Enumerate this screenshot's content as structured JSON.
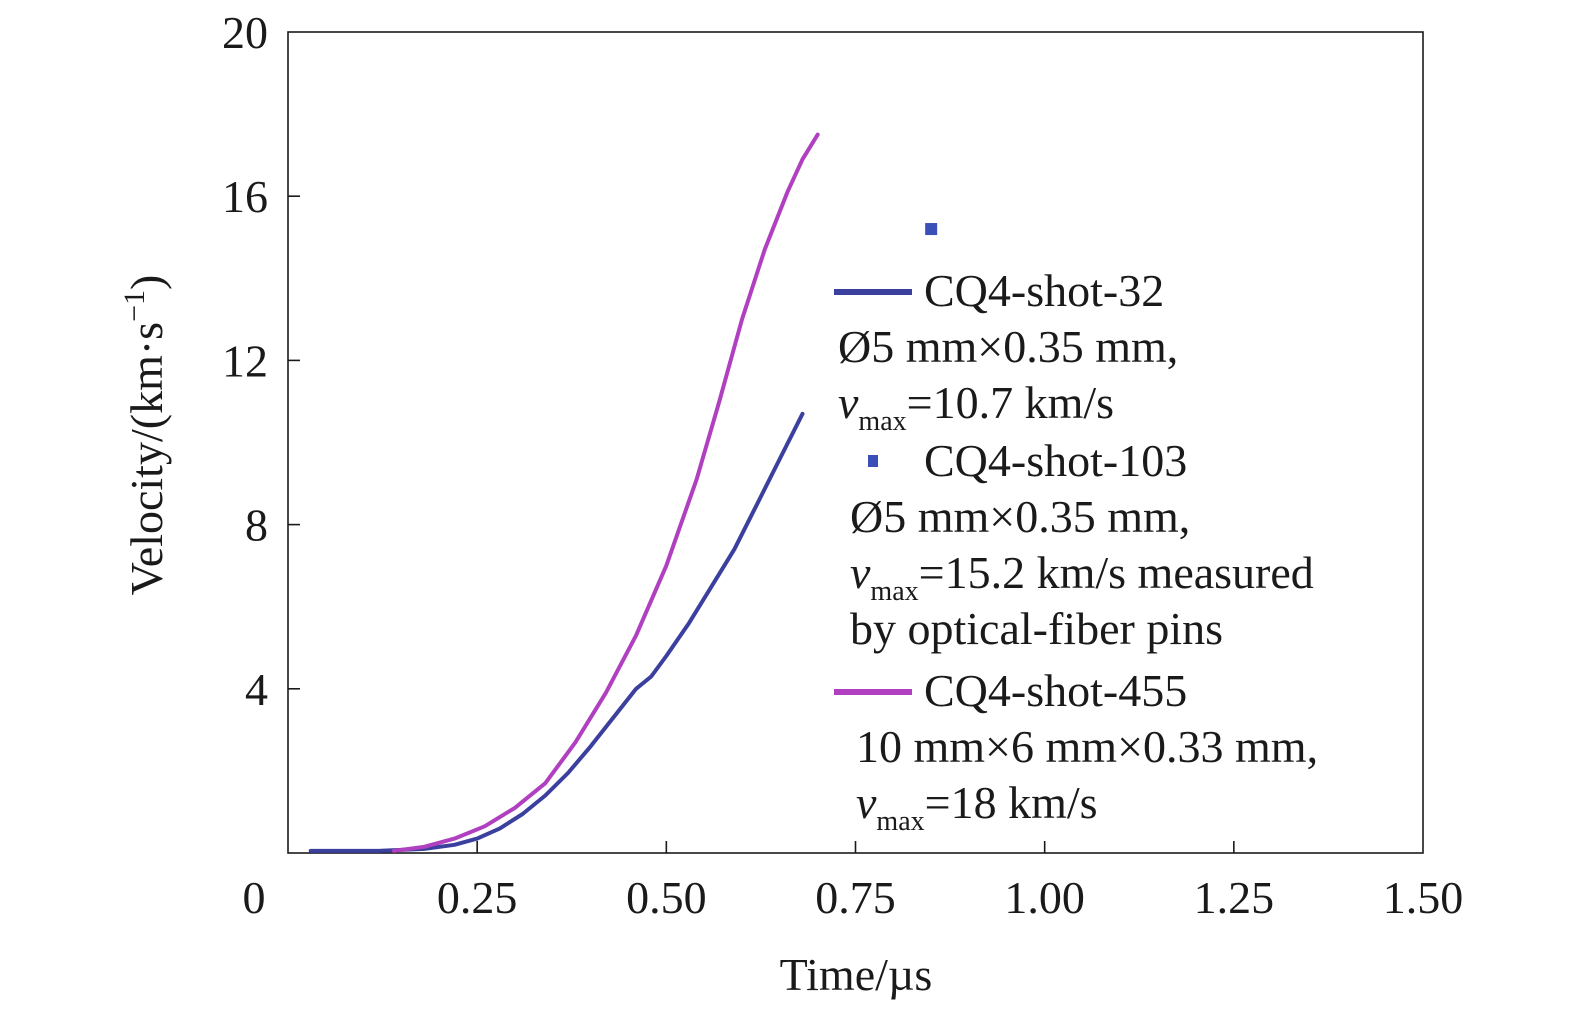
{
  "chart_data": {
    "type": "line",
    "xlabel": "Time/µs",
    "ylabel_main": "Velocity/(km·s",
    "ylabel_exp": "−1",
    "ylabel_close": ")",
    "xlim": [
      0,
      1.5
    ],
    "ylim": [
      0,
      20
    ],
    "x_ticks": [
      {
        "value": 0,
        "label": "0"
      },
      {
        "value": 0.25,
        "label": "0.25"
      },
      {
        "value": 0.5,
        "label": "0.50"
      },
      {
        "value": 0.75,
        "label": "0.75"
      },
      {
        "value": 1.0,
        "label": "1.00"
      },
      {
        "value": 1.25,
        "label": "1.25"
      },
      {
        "value": 1.5,
        "label": "1.50"
      }
    ],
    "y_ticks": [
      {
        "value": 4,
        "label": "4"
      },
      {
        "value": 8,
        "label": "8"
      },
      {
        "value": 12,
        "label": "12"
      },
      {
        "value": 16,
        "label": "16"
      },
      {
        "value": 20,
        "label": "20"
      }
    ],
    "grid": false,
    "legend_position": "right",
    "series": [
      {
        "name": "CQ4-shot-32",
        "kind": "line",
        "color": "#3b3f9e",
        "desc_lines": [
          "Ø5 mm×0.35 mm,"
        ],
        "vmax_v": "v",
        "vmax_sub": "max",
        "vmax_rest": "=10.7 km/s",
        "extra_lines": [],
        "x": [
          0.03,
          0.12,
          0.18,
          0.22,
          0.25,
          0.28,
          0.31,
          0.34,
          0.37,
          0.4,
          0.43,
          0.46,
          0.48,
          0.5,
          0.53,
          0.56,
          0.59,
          0.62,
          0.65,
          0.68
        ],
        "y": [
          0.05,
          0.05,
          0.1,
          0.2,
          0.35,
          0.6,
          0.95,
          1.4,
          1.95,
          2.6,
          3.3,
          4.0,
          4.3,
          4.8,
          5.6,
          6.5,
          7.4,
          8.5,
          9.6,
          10.7
        ]
      },
      {
        "name": "CQ4-shot-103",
        "kind": "point",
        "color": "#3b4fb8",
        "desc_lines": [
          "Ø5 mm×0.35 mm,"
        ],
        "vmax_v": "v",
        "vmax_sub": "max",
        "vmax_rest": "=15.2 km/s measured",
        "extra_lines": [
          "by optical-fiber pins"
        ],
        "x": [
          0.85
        ],
        "y": [
          15.2
        ]
      },
      {
        "name": "CQ4-shot-455",
        "kind": "line",
        "color": "#b040c0",
        "desc_lines": [
          "10 mm×6 mm×0.33 mm,"
        ],
        "vmax_v": "v",
        "vmax_sub": "max",
        "vmax_rest": "=18 km/s",
        "extra_lines": [],
        "x": [
          0.14,
          0.18,
          0.22,
          0.26,
          0.3,
          0.34,
          0.38,
          0.42,
          0.46,
          0.5,
          0.54,
          0.57,
          0.6,
          0.63,
          0.66,
          0.68,
          0.7
        ],
        "y": [
          0.05,
          0.15,
          0.35,
          0.65,
          1.1,
          1.7,
          2.7,
          3.9,
          5.3,
          7.0,
          9.1,
          11.0,
          13.0,
          14.7,
          16.1,
          16.9,
          17.5
        ]
      }
    ]
  }
}
